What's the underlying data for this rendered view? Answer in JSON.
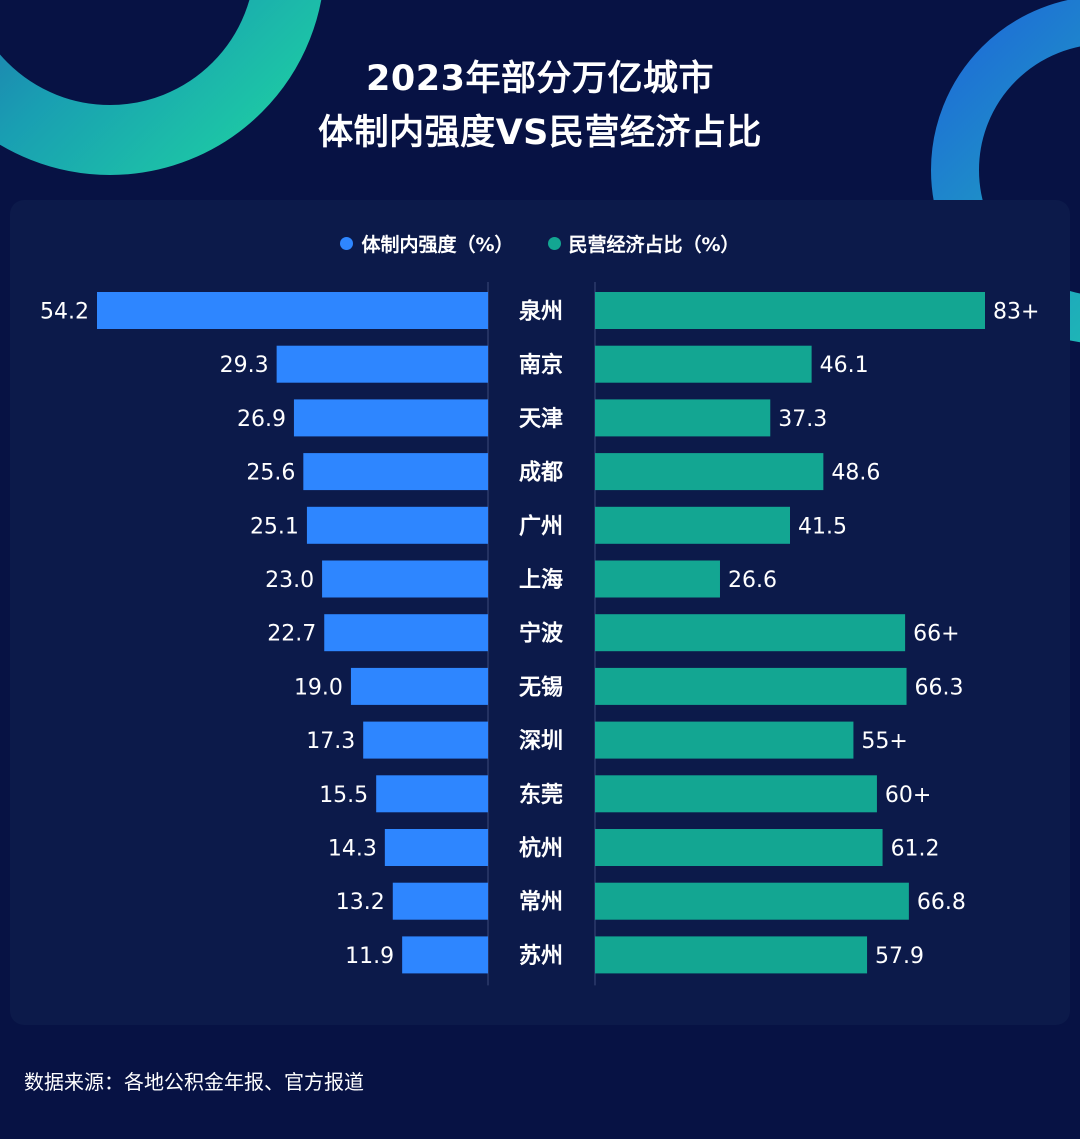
{
  "title": {
    "line1": "2023年部分万亿城市",
    "line2": "体制内强度VS民营经济占比"
  },
  "legend": [
    {
      "label": "体制内强度（%）",
      "color": "#2e86ff"
    },
    {
      "label": "民营经济占比（%）",
      "color": "#13a692"
    }
  ],
  "source": "数据来源：各地公积金年报、官方报道",
  "colors": {
    "background": "#071244",
    "panel": "#0c1a4a",
    "left_bar": "#2e86ff",
    "right_bar": "#13a692",
    "accent_ring": "#1fc8a8"
  },
  "chart_data": {
    "type": "bar",
    "orientation": "horizontal-butterfly",
    "categories": [
      "泉州",
      "南京",
      "天津",
      "成都",
      "广州",
      "上海",
      "宁波",
      "无锡",
      "深圳",
      "东莞",
      "杭州",
      "常州",
      "苏州"
    ],
    "series": [
      {
        "name": "体制内强度（%）",
        "values": [
          54.2,
          29.3,
          26.9,
          25.6,
          25.1,
          23.0,
          22.7,
          19.0,
          17.3,
          15.5,
          14.3,
          13.2,
          11.9
        ],
        "labels": [
          "54.2",
          "29.3",
          "26.9",
          "25.6",
          "25.1",
          "23.0",
          "22.7",
          "19.0",
          "17.3",
          "15.5",
          "14.3",
          "13.2",
          "11.9"
        ]
      },
      {
        "name": "民营经济占比（%）",
        "values": [
          83,
          46.1,
          37.3,
          48.6,
          41.5,
          26.6,
          66,
          66.3,
          55,
          60,
          61.2,
          66.8,
          57.9
        ],
        "labels": [
          "83+",
          "46.1",
          "37.3",
          "48.6",
          "41.5",
          "26.6",
          "66+",
          "66.3",
          "55+",
          "60+",
          "61.2",
          "66.8",
          "57.9"
        ]
      }
    ]
  }
}
